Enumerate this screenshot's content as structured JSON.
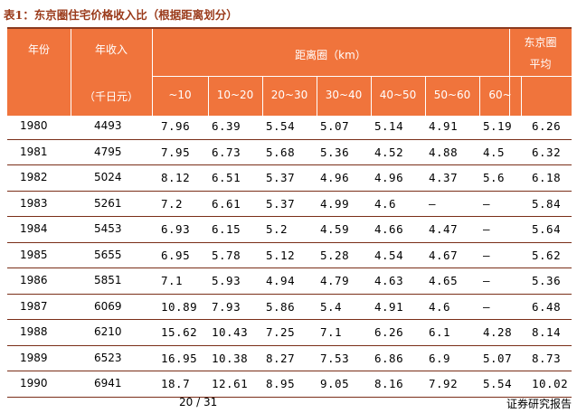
{
  "title": "表1：东京圈住宅价格收入比（根据距离划分）",
  "header": {
    "year": "年份",
    "income": "年收入",
    "income_unit": "（千日元）",
    "distance": "距离圈（km）",
    "tokyo": "东京圈",
    "average": "平均",
    "bands": [
      "~10",
      "10~20",
      "20~30",
      "30~40",
      "40~50",
      "50~60",
      "60~"
    ]
  },
  "rows": [
    {
      "year": "1980",
      "income": "4493",
      "vals": [
        "7.96",
        "6.39",
        "5.54",
        "5.07",
        "5.14",
        "4.91",
        "5.19"
      ],
      "avg": "6.26"
    },
    {
      "year": "1981",
      "income": "4795",
      "vals": [
        "7.95",
        "6.73",
        "5.68",
        "5.36",
        "4.52",
        "4.88",
        "4.5"
      ],
      "avg": "6.32"
    },
    {
      "year": "1982",
      "income": "5024",
      "vals": [
        "8.12",
        "6.51",
        "5.37",
        "4.96",
        "4.96",
        "4.37",
        "5.6"
      ],
      "avg": "6.18"
    },
    {
      "year": "1983",
      "income": "5261",
      "vals": [
        "7.2",
        "6.61",
        "5.37",
        "4.99",
        "4.6",
        "–",
        "–"
      ],
      "avg": "5.84"
    },
    {
      "year": "1984",
      "income": "5453",
      "vals": [
        "6.93",
        "6.15",
        "5.2",
        "4.59",
        "4.66",
        "4.47",
        "–"
      ],
      "avg": "5.64"
    },
    {
      "year": "1985",
      "income": "5655",
      "vals": [
        "6.95",
        "5.78",
        "5.12",
        "5.28",
        "4.54",
        "4.67",
        "–"
      ],
      "avg": "5.62"
    },
    {
      "year": "1986",
      "income": "5851",
      "vals": [
        "7.1",
        "5.93",
        "4.94",
        "4.79",
        "4.63",
        "4.65",
        "–"
      ],
      "avg": "5.36"
    },
    {
      "year": "1987",
      "income": "6069",
      "vals": [
        "10.89",
        "7.93",
        "5.86",
        "5.4",
        "4.91",
        "4.6",
        "–"
      ],
      "avg": "6.48"
    },
    {
      "year": "1988",
      "income": "6210",
      "vals": [
        "15.62",
        "10.43",
        "7.25",
        "7.1",
        "6.26",
        "6.1",
        "4.28"
      ],
      "avg": "8.14"
    },
    {
      "year": "1989",
      "income": "6523",
      "vals": [
        "16.95",
        "10.38",
        "8.27",
        "7.53",
        "6.86",
        "6.9",
        "5.07"
      ],
      "avg": "8.73"
    },
    {
      "year": "1990",
      "income": "6941",
      "vals": [
        "18.7",
        "12.61",
        "8.95",
        "9.05",
        "8.16",
        "7.92",
        "5.54"
      ],
      "avg": "10.02"
    }
  ],
  "footer": {
    "page": "20 / 31",
    "source": "证券研究报告"
  }
}
